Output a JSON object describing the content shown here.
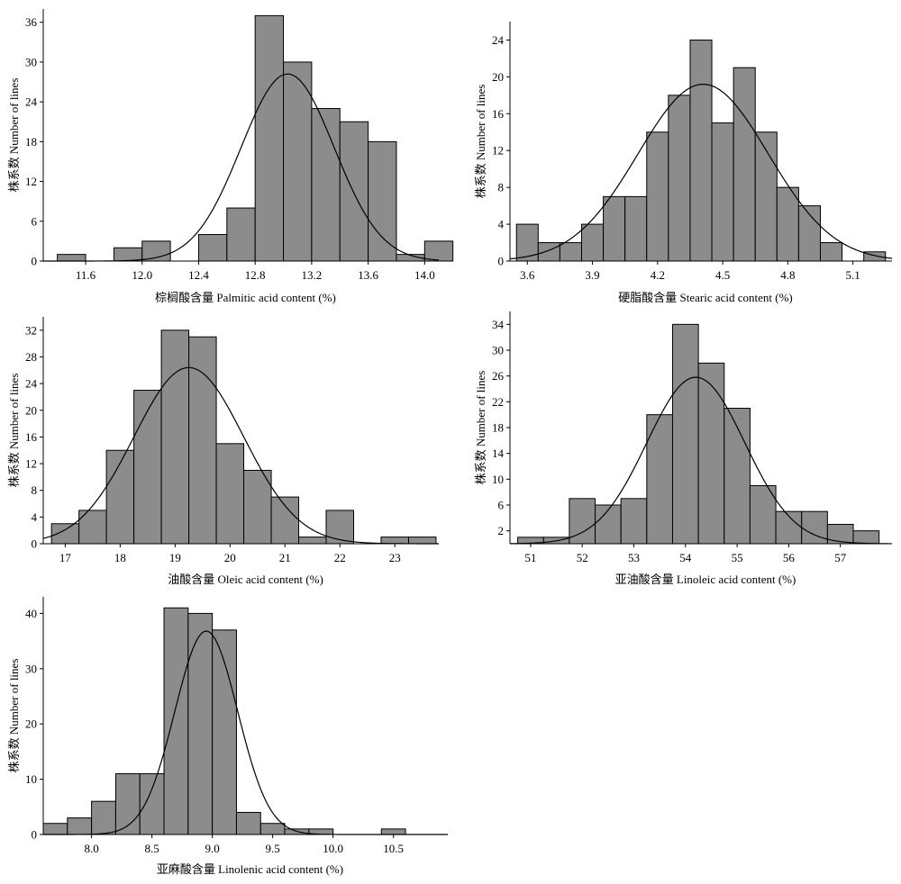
{
  "chart_data": [
    {
      "type": "bar",
      "subtype": "histogram",
      "xlabel": "棕榈酸含量 Palmitic acid content (%)",
      "ylabel": "株系数 Number of lines",
      "xlim": [
        11.3,
        14.1
      ],
      "ylim": [
        0,
        38
      ],
      "xticks": [
        "11.6",
        "12.0",
        "12.4",
        "12.8",
        "13.2",
        "13.6",
        "14.0"
      ],
      "yticks": [
        "0",
        "6",
        "12",
        "18",
        "24",
        "30",
        "36"
      ],
      "bins": [
        {
          "x0": 11.4,
          "x1": 11.6,
          "count": 1
        },
        {
          "x0": 11.8,
          "x1": 12.0,
          "count": 2
        },
        {
          "x0": 12.0,
          "x1": 12.2,
          "count": 3
        },
        {
          "x0": 12.4,
          "x1": 12.6,
          "count": 4
        },
        {
          "x0": 12.6,
          "x1": 12.8,
          "count": 8
        },
        {
          "x0": 12.8,
          "x1": 13.0,
          "count": 37
        },
        {
          "x0": 13.0,
          "x1": 13.2,
          "count": 30
        },
        {
          "x0": 13.2,
          "x1": 13.4,
          "count": 23
        },
        {
          "x0": 13.4,
          "x1": 13.6,
          "count": 21
        },
        {
          "x0": 13.6,
          "x1": 13.8,
          "count": 18
        },
        {
          "x0": 13.8,
          "x1": 14.0,
          "count": 1
        },
        {
          "x0": 14.0,
          "x1": 14.2,
          "count": 3
        }
      ],
      "fit": {
        "type": "normal",
        "mean": 13.03,
        "sd": 0.33,
        "peak": 28.2
      }
    },
    {
      "type": "bar",
      "subtype": "histogram",
      "xlabel": "硬脂酸含量 Stearic acid content (%)",
      "ylabel": "株系数 Number of lines",
      "xlim": [
        3.52,
        5.28
      ],
      "ylim": [
        0,
        26
      ],
      "xticks": [
        "3.6",
        "3.9",
        "4.2",
        "4.5",
        "4.8",
        "5.1"
      ],
      "yticks": [
        "0",
        "4",
        "8",
        "12",
        "16",
        "20",
        "24"
      ],
      "bins": [
        {
          "x0": 3.55,
          "x1": 3.65,
          "count": 4
        },
        {
          "x0": 3.65,
          "x1": 3.75,
          "count": 2
        },
        {
          "x0": 3.75,
          "x1": 3.85,
          "count": 2
        },
        {
          "x0": 3.85,
          "x1": 3.95,
          "count": 4
        },
        {
          "x0": 3.95,
          "x1": 4.05,
          "count": 7
        },
        {
          "x0": 4.05,
          "x1": 4.15,
          "count": 7
        },
        {
          "x0": 4.15,
          "x1": 4.25,
          "count": 14
        },
        {
          "x0": 4.25,
          "x1": 4.35,
          "count": 18
        },
        {
          "x0": 4.35,
          "x1": 4.45,
          "count": 24
        },
        {
          "x0": 4.45,
          "x1": 4.55,
          "count": 15
        },
        {
          "x0": 4.55,
          "x1": 4.65,
          "count": 21
        },
        {
          "x0": 4.65,
          "x1": 4.75,
          "count": 14
        },
        {
          "x0": 4.75,
          "x1": 4.85,
          "count": 8
        },
        {
          "x0": 4.85,
          "x1": 4.95,
          "count": 6
        },
        {
          "x0": 4.95,
          "x1": 5.05,
          "count": 2
        },
        {
          "x0": 5.15,
          "x1": 5.25,
          "count": 1
        }
      ],
      "fit": {
        "type": "normal",
        "mean": 4.41,
        "sd": 0.3,
        "peak": 19.2
      }
    },
    {
      "type": "bar",
      "subtype": "histogram",
      "xlabel": "油酸含量 Oleic acid content (%)",
      "ylabel": "株系数 Number of lines",
      "xlim": [
        16.6,
        23.8
      ],
      "ylim": [
        0,
        34
      ],
      "xticks": [
        "17",
        "18",
        "19",
        "20",
        "21",
        "22",
        "23"
      ],
      "yticks": [
        "0",
        "4",
        "8",
        "12",
        "16",
        "20",
        "24",
        "28",
        "32"
      ],
      "bins": [
        {
          "x0": 16.75,
          "x1": 17.25,
          "count": 3
        },
        {
          "x0": 17.25,
          "x1": 17.75,
          "count": 5
        },
        {
          "x0": 17.75,
          "x1": 18.25,
          "count": 14
        },
        {
          "x0": 18.25,
          "x1": 18.75,
          "count": 23
        },
        {
          "x0": 18.75,
          "x1": 19.25,
          "count": 32
        },
        {
          "x0": 19.25,
          "x1": 19.75,
          "count": 31
        },
        {
          "x0": 19.75,
          "x1": 20.25,
          "count": 15
        },
        {
          "x0": 20.25,
          "x1": 20.75,
          "count": 11
        },
        {
          "x0": 20.75,
          "x1": 21.25,
          "count": 7
        },
        {
          "x0": 21.25,
          "x1": 21.75,
          "count": 1
        },
        {
          "x0": 21.75,
          "x1": 22.25,
          "count": 5
        },
        {
          "x0": 22.75,
          "x1": 23.25,
          "count": 1
        },
        {
          "x0": 23.25,
          "x1": 23.75,
          "count": 1
        }
      ],
      "fit": {
        "type": "normal",
        "mean": 19.25,
        "sd": 1.0,
        "peak": 26.4
      }
    },
    {
      "type": "bar",
      "subtype": "histogram",
      "xlabel": "亚油酸含量 Linoleic acid content (%)",
      "ylabel": "株系数 Number of lines",
      "xlim": [
        50.6,
        58.0
      ],
      "ylim": [
        0,
        36
      ],
      "xticks": [
        "51",
        "52",
        "53",
        "54",
        "55",
        "56",
        "57"
      ],
      "yticks": [
        "2",
        "6",
        "10",
        "14",
        "18",
        "22",
        "26",
        "30",
        "34"
      ],
      "bins": [
        {
          "x0": 50.75,
          "x1": 51.25,
          "count": 1
        },
        {
          "x0": 51.25,
          "x1": 51.75,
          "count": 1
        },
        {
          "x0": 51.75,
          "x1": 52.25,
          "count": 7
        },
        {
          "x0": 52.25,
          "x1": 52.75,
          "count": 6
        },
        {
          "x0": 52.75,
          "x1": 53.25,
          "count": 7
        },
        {
          "x0": 53.25,
          "x1": 53.75,
          "count": 20
        },
        {
          "x0": 53.75,
          "x1": 54.25,
          "count": 34
        },
        {
          "x0": 54.25,
          "x1": 54.75,
          "count": 28
        },
        {
          "x0": 54.75,
          "x1": 55.25,
          "count": 21
        },
        {
          "x0": 55.25,
          "x1": 55.75,
          "count": 9
        },
        {
          "x0": 55.75,
          "x1": 56.25,
          "count": 5
        },
        {
          "x0": 56.25,
          "x1": 56.75,
          "count": 5
        },
        {
          "x0": 56.75,
          "x1": 57.25,
          "count": 3
        },
        {
          "x0": 57.25,
          "x1": 57.75,
          "count": 2
        }
      ],
      "fit": {
        "type": "normal",
        "mean": 54.2,
        "sd": 0.95,
        "peak": 25.8
      }
    },
    {
      "type": "bar",
      "subtype": "histogram",
      "xlabel": "亚麻酸含量 Linolenic acid content (%)",
      "ylabel": "株系数 Number of lines",
      "xlim": [
        7.6,
        10.95
      ],
      "ylim": [
        0,
        43
      ],
      "xticks": [
        "8.0",
        "8.5",
        "9.0",
        "9.5",
        "10.0",
        "10.5"
      ],
      "yticks": [
        "0",
        "10",
        "20",
        "30",
        "40"
      ],
      "bins": [
        {
          "x0": 7.6,
          "x1": 7.8,
          "count": 2
        },
        {
          "x0": 7.8,
          "x1": 8.0,
          "count": 3
        },
        {
          "x0": 8.0,
          "x1": 8.2,
          "count": 6
        },
        {
          "x0": 8.2,
          "x1": 8.4,
          "count": 11
        },
        {
          "x0": 8.4,
          "x1": 8.6,
          "count": 11
        },
        {
          "x0": 8.6,
          "x1": 8.8,
          "count": 41
        },
        {
          "x0": 8.8,
          "x1": 9.0,
          "count": 40
        },
        {
          "x0": 9.0,
          "x1": 9.2,
          "count": 37
        },
        {
          "x0": 9.2,
          "x1": 9.4,
          "count": 4
        },
        {
          "x0": 9.4,
          "x1": 9.6,
          "count": 2
        },
        {
          "x0": 9.6,
          "x1": 9.8,
          "count": 1
        },
        {
          "x0": 9.8,
          "x1": 10.0,
          "count": 1
        },
        {
          "x0": 10.4,
          "x1": 10.6,
          "count": 1
        }
      ],
      "fit": {
        "type": "normal",
        "mean": 8.95,
        "sd": 0.26,
        "peak": 36.8
      }
    }
  ]
}
